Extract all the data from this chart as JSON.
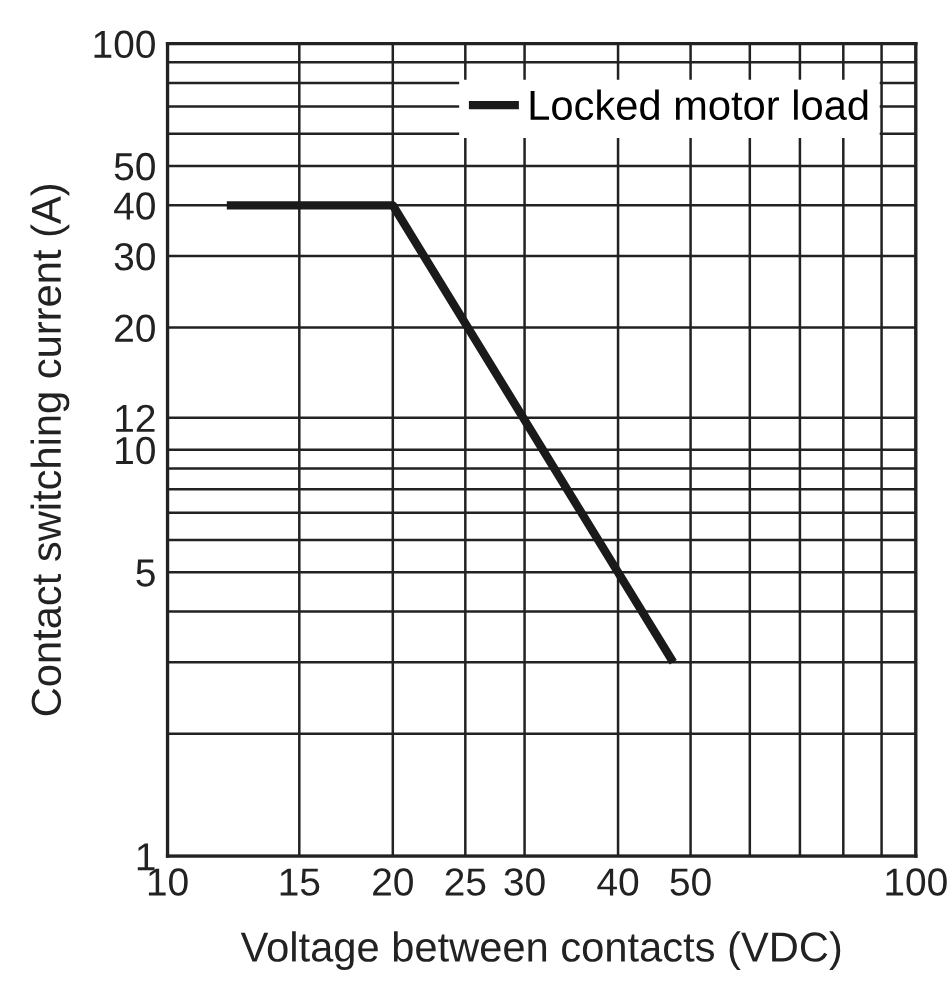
{
  "chart_data": {
    "type": "line",
    "xlabel": "Voltage between contacts (VDC)",
    "ylabel": "Contact switching current (A)",
    "log": "xy",
    "x": [
      12,
      20,
      47.4
    ],
    "series": [
      {
        "name": "Locked motor load",
        "color": "#1a1a1a",
        "values": [
          40,
          40,
          3
        ]
      }
    ],
    "xlim": [
      10,
      100
    ],
    "ylim": [
      1,
      100
    ],
    "xticks": [
      10,
      15,
      20,
      25,
      30,
      40,
      50,
      {
        "value": 60,
        "label": null
      },
      {
        "value": 70,
        "label": null
      },
      {
        "value": 80,
        "label": null
      },
      {
        "value": 90,
        "label": null
      },
      100
    ],
    "yticks": [
      1,
      {
        "value": 2,
        "label": null
      },
      {
        "value": 3,
        "label": null
      },
      {
        "value": 4,
        "label": null
      },
      5,
      {
        "value": 6,
        "label": null
      },
      {
        "value": 7,
        "label": null
      },
      {
        "value": 8,
        "label": null
      },
      {
        "value": 9,
        "label": null
      },
      10,
      12,
      20,
      30,
      40,
      50,
      {
        "value": 60,
        "label": null
      },
      {
        "value": 70,
        "label": null
      },
      {
        "value": 80,
        "label": null
      },
      {
        "value": 90,
        "label": null
      },
      100
    ],
    "grid": true,
    "legend": "top right",
    "marker": "none",
    "line_style": "solid"
  }
}
